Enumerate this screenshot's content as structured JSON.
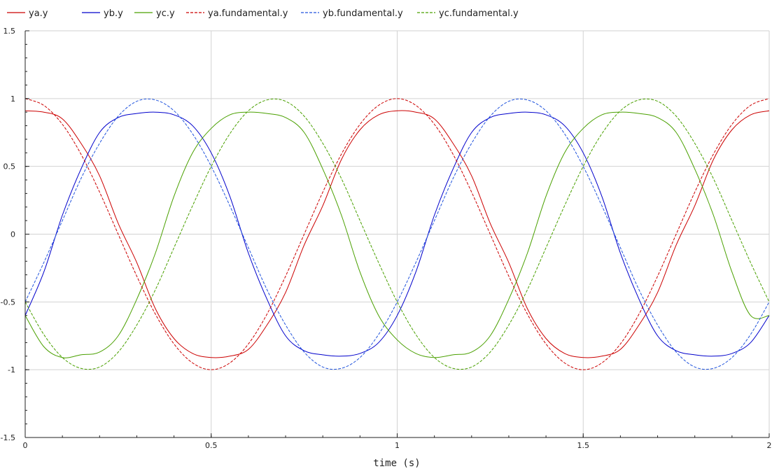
{
  "chart_data": {
    "type": "line",
    "title": "",
    "xlabel": "time (s)",
    "ylabel": "",
    "xlim": [
      0,
      2
    ],
    "ylim": [
      -1.5,
      1.5
    ],
    "grid": true,
    "legend_position": "top",
    "x_ticks": [
      "0",
      "0.5",
      "1",
      "1.5",
      "2"
    ],
    "y_ticks": [
      "-1.5",
      "-1",
      "-0.5",
      "0",
      "0.5",
      "1",
      "1.5"
    ],
    "x_tick_values": [
      0,
      0.5,
      1,
      1.5,
      2
    ],
    "y_tick_values": [
      -1.5,
      -1,
      -0.5,
      0,
      0.5,
      1,
      1.5
    ],
    "x": [
      0,
      0.05,
      0.1,
      0.15,
      0.2,
      0.25,
      0.3,
      0.35,
      0.4,
      0.45,
      0.5,
      0.55,
      0.6,
      0.65,
      0.7,
      0.75,
      0.8,
      0.85,
      0.9,
      0.95,
      1,
      1.05,
      1.1,
      1.15,
      1.2,
      1.25,
      1.3,
      1.35,
      1.4,
      1.45,
      1.5,
      1.55,
      1.6,
      1.65,
      1.7,
      1.75,
      1.8,
      1.85,
      1.9,
      1.95,
      2
    ],
    "series": [
      {
        "name": "ya.y",
        "color": "#cc0000",
        "style": "solid",
        "values": [
          0.91,
          0.9,
          0.85,
          0.67,
          0.43,
          0.08,
          -0.21,
          -0.55,
          -0.77,
          -0.88,
          -0.91,
          -0.9,
          -0.85,
          -0.67,
          -0.43,
          -0.08,
          0.21,
          0.55,
          0.77,
          0.88,
          0.91,
          0.9,
          0.85,
          0.67,
          0.43,
          0.08,
          -0.21,
          -0.55,
          -0.77,
          -0.88,
          -0.91,
          -0.9,
          -0.85,
          -0.67,
          -0.43,
          -0.08,
          0.21,
          0.55,
          0.77,
          0.88,
          0.91
        ]
      },
      {
        "name": "yb.y",
        "color": "#0000cc",
        "style": "solid",
        "values": [
          -0.6,
          -0.28,
          0.14,
          0.48,
          0.75,
          0.86,
          0.89,
          0.9,
          0.88,
          0.8,
          0.6,
          0.28,
          -0.14,
          -0.48,
          -0.75,
          -0.86,
          -0.89,
          -0.9,
          -0.88,
          -0.8,
          -0.6,
          -0.28,
          0.14,
          0.48,
          0.75,
          0.86,
          0.89,
          0.9,
          0.88,
          0.8,
          0.6,
          0.28,
          -0.14,
          -0.48,
          -0.75,
          -0.86,
          -0.89,
          -0.9,
          -0.88,
          -0.8,
          -0.6
        ]
      },
      {
        "name": "yc.y",
        "color": "#4aa000",
        "style": "solid",
        "values": [
          -0.6,
          -0.83,
          -0.91,
          -0.89,
          -0.87,
          -0.75,
          -0.48,
          -0.14,
          0.28,
          0.6,
          0.78,
          0.88,
          0.9,
          0.89,
          0.86,
          0.75,
          0.48,
          0.14,
          -0.28,
          -0.6,
          -0.78,
          -0.88,
          -0.91,
          -0.89,
          -0.87,
          -0.75,
          -0.48,
          -0.14,
          0.28,
          0.6,
          0.78,
          0.88,
          0.9,
          0.89,
          0.86,
          0.75,
          0.48,
          0.14,
          -0.28,
          -0.6,
          -0.6
        ]
      },
      {
        "name": "ya.fundamental.y",
        "color": "#cc0000",
        "style": "dashed",
        "values": [
          1,
          0.95,
          0.81,
          0.59,
          0.31,
          0,
          -0.31,
          -0.59,
          -0.81,
          -0.95,
          -1,
          -0.95,
          -0.81,
          -0.59,
          -0.31,
          0,
          0.31,
          0.59,
          0.81,
          0.95,
          1,
          0.95,
          0.81,
          0.59,
          0.31,
          0,
          -0.31,
          -0.59,
          -0.81,
          -0.95,
          -1,
          -0.95,
          -0.81,
          -0.59,
          -0.31,
          0,
          0.31,
          0.59,
          0.81,
          0.95,
          1
        ]
      },
      {
        "name": "yb.fundamental.y",
        "color": "#2255dd",
        "style": "dashed",
        "values": [
          -0.5,
          -0.21,
          0.1,
          0.41,
          0.67,
          0.87,
          0.98,
          0.99,
          0.91,
          0.74,
          0.5,
          0.21,
          -0.1,
          -0.41,
          -0.67,
          -0.87,
          -0.98,
          -0.99,
          -0.91,
          -0.74,
          -0.5,
          -0.21,
          0.1,
          0.41,
          0.67,
          0.87,
          0.98,
          0.99,
          0.91,
          0.74,
          0.5,
          0.21,
          -0.1,
          -0.41,
          -0.67,
          -0.87,
          -0.98,
          -0.99,
          -0.91,
          -0.74,
          -0.5
        ]
      },
      {
        "name": "yc.fundamental.y",
        "color": "#4aa000",
        "style": "dashed",
        "values": [
          -0.5,
          -0.74,
          -0.91,
          -0.99,
          -0.98,
          -0.87,
          -0.67,
          -0.41,
          -0.1,
          0.21,
          0.5,
          0.74,
          0.91,
          0.99,
          0.98,
          0.87,
          0.67,
          0.41,
          0.1,
          -0.21,
          -0.5,
          -0.74,
          -0.91,
          -0.99,
          -0.98,
          -0.87,
          -0.67,
          -0.41,
          -0.1,
          0.21,
          0.5,
          0.74,
          0.91,
          0.99,
          0.98,
          0.87,
          0.67,
          0.41,
          0.1,
          -0.21,
          -0.5
        ]
      }
    ]
  }
}
